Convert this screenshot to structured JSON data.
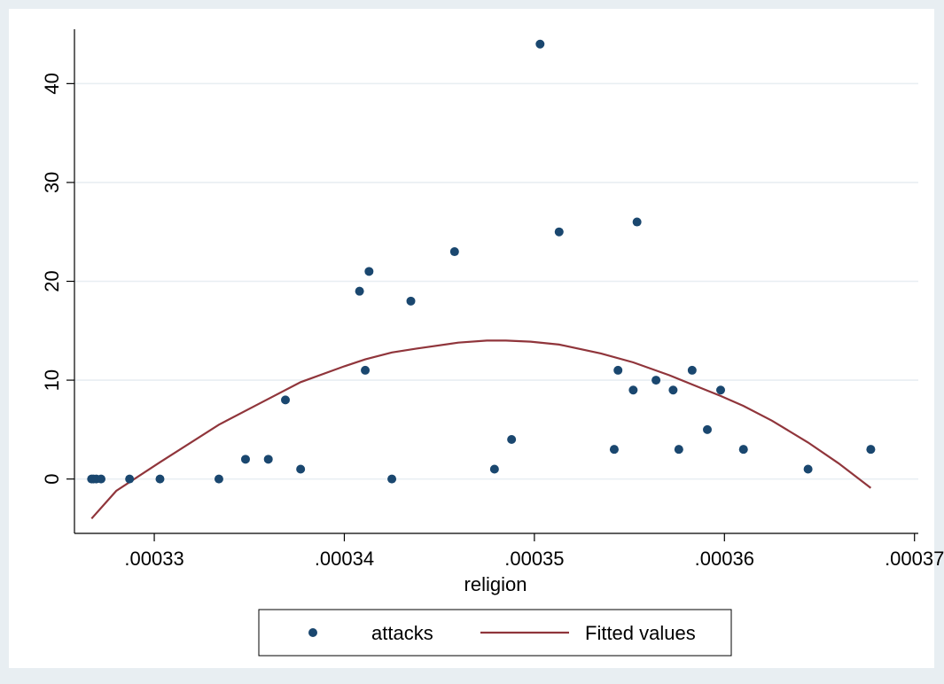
{
  "colors": {
    "background": "#e8eef2",
    "plot_background": "#ffffff",
    "gridline": "#e8eef2",
    "points": "#1a476f",
    "fitted": "#90353b",
    "axis": "#000000"
  },
  "chart_data": {
    "type": "scatter",
    "title": "",
    "xlabel": "religion",
    "ylabel": "",
    "xlim": [
      0.0003258,
      0.0003702
    ],
    "ylim": [
      -5.5,
      45.5
    ],
    "grid": true,
    "legend_position": "bottom",
    "xticks": [
      0.00033,
      0.00034,
      0.00035,
      0.00036,
      0.00037
    ],
    "xtick_labels": [
      ".00033",
      ".00034",
      ".00035",
      ".00036",
      ".00037"
    ],
    "yticks": [
      0,
      10,
      20,
      30,
      40
    ],
    "ytick_labels": [
      "0",
      "10",
      "20",
      "30",
      "40"
    ],
    "series": [
      {
        "name": "attacks",
        "kind": "scatter",
        "x": [
          0.0003267,
          0.0003268,
          0.00032695,
          0.0003272,
          0.0003287,
          0.0003303,
          0.0003334,
          0.0003348,
          0.000336,
          0.0003369,
          0.0003377,
          0.0003408,
          0.0003411,
          0.0003413,
          0.0003425,
          0.0003435,
          0.0003458,
          0.0003479,
          0.0003488,
          0.0003503,
          0.0003513,
          0.0003542,
          0.0003544,
          0.0003552,
          0.0003554,
          0.0003564,
          0.0003573,
          0.0003576,
          0.0003583,
          0.0003591,
          0.0003598,
          0.000361,
          0.0003644,
          0.0003677
        ],
        "y": [
          0,
          0,
          0,
          0,
          0,
          0,
          0,
          2,
          2,
          8,
          1,
          19,
          11,
          21,
          0,
          18,
          23,
          1,
          4,
          44,
          25,
          3,
          11,
          9,
          26,
          10,
          9,
          3,
          11,
          5,
          9,
          3,
          1,
          3
        ]
      },
      {
        "name": "Fitted values",
        "kind": "line",
        "x": [
          0.0003267,
          0.000328,
          0.0003303,
          0.0003334,
          0.0003355,
          0.0003377,
          0.00034,
          0.0003411,
          0.0003425,
          0.0003438,
          0.000346,
          0.0003475,
          0.0003485,
          0.0003498,
          0.0003513,
          0.0003535,
          0.0003552,
          0.0003571,
          0.0003589,
          0.0003598,
          0.000361,
          0.0003625,
          0.0003644,
          0.000366,
          0.0003677
        ],
        "y": [
          -4.0,
          -1.2,
          1.7,
          5.5,
          7.6,
          9.8,
          11.4,
          12.1,
          12.8,
          13.2,
          13.8,
          14.0,
          14.0,
          13.9,
          13.6,
          12.7,
          11.8,
          10.5,
          9.1,
          8.4,
          7.4,
          5.9,
          3.7,
          1.6,
          -0.9
        ]
      }
    ]
  }
}
